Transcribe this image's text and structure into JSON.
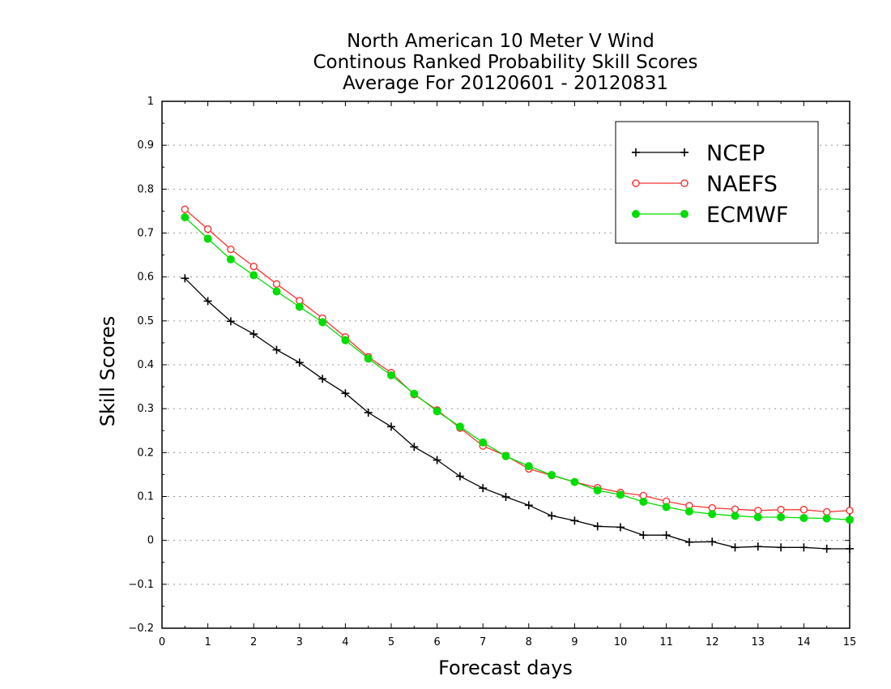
{
  "chart_data": {
    "type": "line",
    "title_lines": [
      "North American 10 Meter V Wind",
      "Continous Ranked Probability Skill Scores",
      "Average For 20120601 - 20120831"
    ],
    "xlabel": "Forecast days",
    "ylabel": "Skill Scores",
    "xlim": [
      0,
      15
    ],
    "ylim": [
      -0.2,
      1
    ],
    "xticks": [
      "0",
      "1",
      "2",
      "3",
      "4",
      "5",
      "6",
      "7",
      "8",
      "9",
      "10",
      "11",
      "12",
      "13",
      "14",
      "15"
    ],
    "yticks": [
      "−0.2",
      "−0.1",
      "0",
      "0.1",
      "0.2",
      "0.3",
      "0.4",
      "0.5",
      "0.6",
      "0.7",
      "0.8",
      "0.9",
      "1"
    ],
    "grid": "horizontal dotted",
    "legend_position": "top-right",
    "x": [
      0.5,
      1,
      1.5,
      2,
      2.5,
      3,
      3.5,
      4,
      4.5,
      5,
      5.5,
      6,
      6.5,
      7,
      7.5,
      8,
      8.5,
      9,
      9.5,
      10,
      10.5,
      11,
      11.5,
      12,
      12.5,
      13,
      13.5,
      14,
      14.5,
      15
    ],
    "series": [
      {
        "name": "NCEP",
        "color": "#000000",
        "marker": "plus",
        "values": [
          0.597,
          0.545,
          0.499,
          0.47,
          0.434,
          0.405,
          0.368,
          0.335,
          0.291,
          0.259,
          0.213,
          0.183,
          0.146,
          0.119,
          0.099,
          0.08,
          0.056,
          0.045,
          0.032,
          0.03,
          0.012,
          0.012,
          -0.004,
          -0.003,
          -0.016,
          -0.014,
          -0.016,
          -0.016,
          -0.019,
          -0.019
        ]
      },
      {
        "name": "NAEFS",
        "color": "#ff3333",
        "marker": "open-circle",
        "values": [
          0.754,
          0.709,
          0.663,
          0.624,
          0.584,
          0.546,
          0.506,
          0.463,
          0.418,
          0.382,
          0.332,
          0.297,
          0.256,
          0.215,
          0.193,
          0.163,
          0.148,
          0.133,
          0.12,
          0.109,
          0.102,
          0.089,
          0.079,
          0.074,
          0.071,
          0.068,
          0.07,
          0.07,
          0.065,
          0.068
        ]
      },
      {
        "name": "ECMWF",
        "color": "#00dd00",
        "marker": "filled-circle",
        "values": [
          0.736,
          0.687,
          0.64,
          0.604,
          0.567,
          0.532,
          0.497,
          0.456,
          0.414,
          0.376,
          0.334,
          0.294,
          0.259,
          0.223,
          0.192,
          0.169,
          0.149,
          0.133,
          0.114,
          0.104,
          0.088,
          0.076,
          0.066,
          0.06,
          0.056,
          0.053,
          0.053,
          0.051,
          0.05,
          0.047
        ]
      }
    ]
  }
}
